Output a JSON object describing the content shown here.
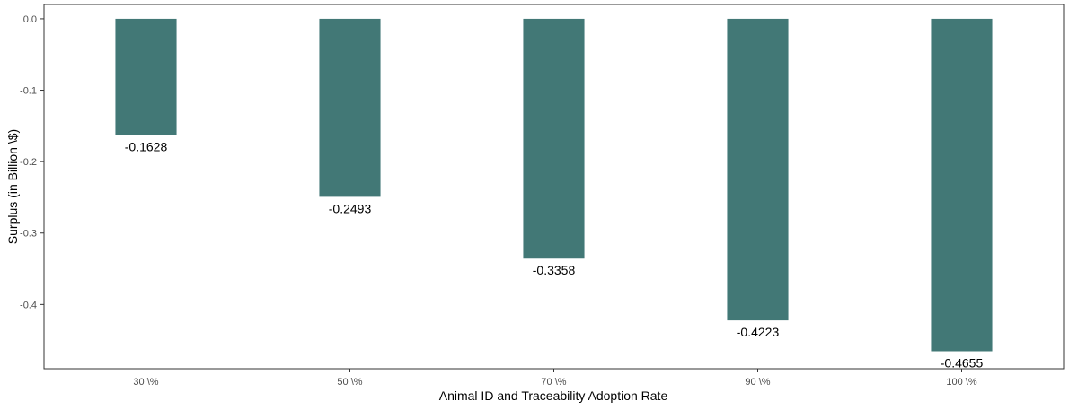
{
  "chart_data": {
    "type": "bar",
    "categories": [
      "30 \\%",
      "50 \\%",
      "70 \\%",
      "90 \\%",
      "100 \\%"
    ],
    "values": [
      -0.1628,
      -0.2493,
      -0.3358,
      -0.4223,
      -0.4655
    ],
    "data_labels": [
      "-0.1628",
      "-0.2493",
      "-0.3358",
      "-0.4223",
      "-0.4655"
    ],
    "title": "",
    "xlabel": "Animal ID and Traceability Adoption Rate",
    "ylabel": "Surplus (in Billion \\$)",
    "ylim": [
      -0.49,
      0.02
    ],
    "yticks": [
      0.0,
      -0.1,
      -0.2,
      -0.3,
      -0.4
    ],
    "ytick_labels": [
      "0.0",
      "-0.1",
      "-0.2",
      "-0.3",
      "-0.4"
    ],
    "grid": false,
    "legend": "none",
    "bar_color": "#427876"
  }
}
